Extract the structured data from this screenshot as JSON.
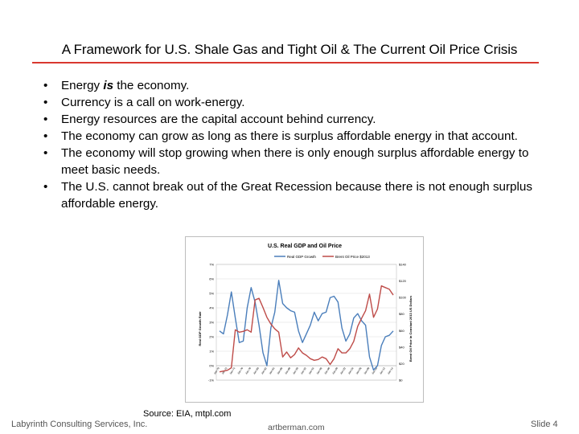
{
  "slide": {
    "title": "A Framework for U.S. Shale Gas and Tight Oil & The Current Oil Price Crisis",
    "source": "Source:  EIA, mtpl.com",
    "footer_left": "Labyrinth Consulting Services, Inc.",
    "footer_center": "artberman.com",
    "footer_right": "Slide 4",
    "accent_color": "#d9382f"
  },
  "bullets": [
    {
      "pre": "Energy ",
      "emph": "is",
      "post": " the economy."
    },
    {
      "pre": "Currency is a call on work-energy.",
      "emph": "",
      "post": ""
    },
    {
      "pre": "Energy resources are the capital account behind currency.",
      "emph": "",
      "post": ""
    },
    {
      "pre": "The economy can grow as long as there is surplus affordable energy in that account.",
      "emph": "",
      "post": ""
    },
    {
      "pre": "The economy will stop growing when there is only enough surplus affordable energy to meet basic needs.",
      "emph": "",
      "post": ""
    },
    {
      "pre": "The U.S. cannot break out of the Great Recession because there is not enough surplus affordable energy.",
      "emph": "",
      "post": ""
    }
  ],
  "chart_data": {
    "type": "line",
    "title": "U.S. Real GDP and Oil Price",
    "ylabel_left": "Real GDP Growth Rate",
    "ylabel_right": "Brent Oil Price in Constant 2013 US Dollars",
    "ylim_left": [
      -1,
      7
    ],
    "ylim_right": [
      0,
      140
    ],
    "yticks_left": [
      "-1%",
      "0%",
      "1%",
      "2%",
      "3%",
      "4%",
      "5%",
      "6%",
      "7%"
    ],
    "yticks_right": [
      "$0",
      "$20",
      "$40",
      "$60",
      "$80",
      "$100",
      "$120",
      "$140"
    ],
    "xticks": [
      "Jan-70",
      "Jan-72",
      "Jan-74",
      "Jan-76",
      "Jan-78",
      "Jan-80",
      "Jan-82",
      "Jan-84",
      "Jan-86",
      "Jan-88",
      "Jan-90",
      "Jan-92",
      "Jan-94",
      "Jan-96",
      "Jan-98",
      "Jan-00",
      "Jan-02",
      "Jan-04",
      "Jan-06",
      "Jan-08",
      "Jan-10",
      "Jan-12",
      "Jan-14"
    ],
    "grid": true,
    "legend": "top",
    "series": [
      {
        "name": "Real GDP Growth",
        "axis": "left",
        "color": "#4a7ebb",
        "values": [
          2.4,
          2.2,
          3.5,
          5.1,
          3.3,
          1.6,
          1.7,
          4.0,
          5.4,
          4.4,
          2.8,
          0.9,
          0.0,
          2.6,
          3.7,
          5.9,
          4.3,
          4.0,
          3.8,
          3.7,
          2.4,
          1.6,
          2.2,
          2.8,
          3.7,
          3.1,
          3.6,
          3.7,
          4.7,
          4.8,
          4.4,
          2.6,
          1.7,
          2.2,
          3.3,
          3.6,
          3.1,
          2.8,
          0.6,
          -0.3,
          0.0,
          1.4,
          2.0,
          2.1,
          2.4
        ]
      },
      {
        "name": "Brent Oil Price $2013",
        "axis": "right",
        "color": "#be4b48",
        "values": [
          10,
          11,
          12,
          15,
          61,
          58,
          59,
          61,
          58,
          97,
          99,
          88,
          76,
          68,
          62,
          58,
          28,
          34,
          27,
          31,
          39,
          33,
          30,
          26,
          24,
          25,
          28,
          26,
          19,
          26,
          38,
          33,
          33,
          38,
          47,
          65,
          75,
          84,
          104,
          76,
          86,
          114,
          112,
          110,
          103
        ]
      }
    ]
  }
}
